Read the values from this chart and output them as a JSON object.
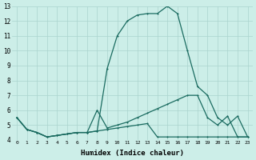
{
  "xlabel": "Humidex (Indice chaleur)",
  "ylabel": "",
  "background_color": "#cceee8",
  "grid_color": "#aad4ce",
  "line_color": "#1a6b60",
  "xlim": [
    -0.5,
    23.5
  ],
  "ylim": [
    4,
    13
  ],
  "yticks": [
    4,
    5,
    6,
    7,
    8,
    9,
    10,
    11,
    12,
    13
  ],
  "xticks": [
    0,
    1,
    2,
    3,
    4,
    5,
    6,
    7,
    8,
    9,
    10,
    11,
    12,
    13,
    14,
    15,
    16,
    17,
    18,
    19,
    20,
    21,
    22,
    23
  ],
  "line1_x": [
    0,
    1,
    2,
    3,
    4,
    5,
    6,
    7,
    8,
    9,
    10,
    11,
    12,
    13,
    14,
    15,
    16,
    17,
    18,
    19,
    20,
    21,
    22,
    23
  ],
  "line1_y": [
    5.5,
    4.7,
    4.5,
    4.2,
    4.3,
    4.4,
    4.5,
    4.5,
    4.6,
    8.8,
    11.0,
    12.0,
    12.4,
    12.5,
    12.5,
    13.0,
    12.5,
    10.0,
    7.6,
    7.0,
    5.5,
    5.0,
    5.6,
    4.2
  ],
  "line2_x": [
    0,
    1,
    2,
    3,
    4,
    5,
    6,
    7,
    8,
    9,
    10,
    11,
    12,
    13,
    14,
    15,
    16,
    17,
    18,
    19,
    20,
    21,
    22,
    23
  ],
  "line2_y": [
    5.5,
    4.7,
    4.5,
    4.2,
    4.3,
    4.4,
    4.5,
    4.5,
    6.0,
    4.8,
    5.0,
    5.2,
    5.5,
    5.8,
    6.1,
    6.4,
    6.7,
    7.0,
    7.0,
    5.5,
    5.0,
    5.6,
    4.2,
    4.2
  ],
  "line3_x": [
    0,
    1,
    2,
    3,
    4,
    5,
    6,
    7,
    8,
    9,
    10,
    11,
    12,
    13,
    14,
    15,
    16,
    17,
    18,
    19,
    20,
    21,
    22,
    23
  ],
  "line3_y": [
    5.5,
    4.7,
    4.5,
    4.2,
    4.3,
    4.4,
    4.5,
    4.5,
    4.6,
    4.7,
    4.8,
    4.9,
    5.0,
    5.1,
    4.2,
    4.2,
    4.2,
    4.2,
    4.2,
    4.2,
    4.2,
    4.2,
    4.2,
    4.2
  ]
}
